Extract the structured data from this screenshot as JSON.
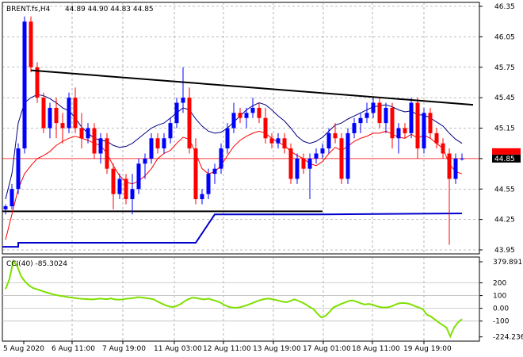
{
  "chart_data": [
    {
      "type": "candlestick",
      "header": {
        "symbol_label": "BRENT.fs,H4",
        "ohlc_label": "44.89 44.90 44.83 44.85"
      },
      "current_price_label": "44.85",
      "ylim": [
        43.95,
        46.35
      ],
      "y_ticks": [
        "46.35",
        "46.05",
        "45.75",
        "45.45",
        "45.15",
        "44.85",
        "44.55",
        "44.25",
        "43.95"
      ],
      "x_ticks": [
        "5 Aug 2020",
        "6 Aug 11:00",
        "7 Aug 19:00",
        "11 Aug 03:00",
        "12 Aug 11:00",
        "13 Aug 19:00",
        "17 Aug 01:00",
        "18 Aug 11:00",
        "19 Aug 19:00"
      ],
      "colors": {
        "bull": "#0000ff",
        "bear": "#ff0000",
        "resistance": "#000000",
        "support": "#000000",
        "fast_ma": "#ff0000",
        "slow_ma": "#000080",
        "stop_line": "#0000cc",
        "price_line": "#ff0000"
      },
      "candles": [
        [
          44.35,
          44.4,
          44.3,
          44.38
        ],
        [
          44.38,
          44.6,
          44.35,
          44.55
        ],
        [
          44.55,
          45.0,
          44.5,
          44.95
        ],
        [
          44.95,
          46.25,
          44.9,
          46.2
        ],
        [
          46.2,
          46.25,
          45.7,
          45.75
        ],
        [
          45.75,
          45.8,
          45.4,
          45.45
        ],
        [
          45.45,
          45.5,
          45.1,
          45.15
        ],
        [
          45.15,
          45.4,
          45.05,
          45.35
        ],
        [
          45.35,
          45.45,
          45.05,
          45.2
        ],
        [
          45.2,
          45.3,
          45.0,
          45.15
        ],
        [
          45.15,
          45.5,
          45.1,
          45.45
        ],
        [
          45.45,
          45.55,
          45.1,
          45.15
        ],
        [
          45.15,
          45.3,
          44.95,
          45.05
        ],
        [
          45.05,
          45.2,
          45.0,
          45.15
        ],
        [
          45.15,
          45.2,
          44.85,
          44.9
        ],
        [
          44.9,
          45.1,
          44.8,
          45.05
        ],
        [
          45.05,
          45.1,
          44.7,
          44.75
        ],
        [
          44.75,
          44.8,
          44.35,
          44.5
        ],
        [
          44.5,
          44.7,
          44.45,
          44.65
        ],
        [
          44.65,
          44.7,
          44.4,
          44.45
        ],
        [
          44.45,
          44.7,
          44.3,
          44.55
        ],
        [
          44.55,
          44.85,
          44.5,
          44.8
        ],
        [
          44.8,
          44.9,
          44.65,
          44.85
        ],
        [
          44.85,
          45.1,
          44.8,
          45.05
        ],
        [
          45.05,
          45.1,
          44.9,
          44.95
        ],
        [
          44.95,
          45.1,
          44.9,
          45.05
        ],
        [
          45.05,
          45.25,
          45.0,
          45.2
        ],
        [
          45.2,
          45.45,
          45.15,
          45.4
        ],
        [
          45.4,
          45.75,
          45.3,
          45.45
        ],
        [
          45.45,
          45.55,
          44.9,
          44.95
        ],
        [
          44.95,
          45.05,
          44.4,
          44.45
        ],
        [
          44.45,
          44.55,
          44.4,
          44.5
        ],
        [
          44.5,
          44.75,
          44.45,
          44.7
        ],
        [
          44.7,
          44.8,
          44.6,
          44.75
        ],
        [
          44.75,
          45.0,
          44.7,
          44.95
        ],
        [
          44.95,
          45.2,
          44.9,
          45.15
        ],
        [
          45.15,
          45.4,
          45.1,
          45.3
        ],
        [
          45.3,
          45.35,
          45.2,
          45.25
        ],
        [
          45.25,
          45.35,
          45.15,
          45.3
        ],
        [
          45.3,
          45.45,
          45.25,
          45.35
        ],
        [
          45.35,
          45.4,
          45.2,
          45.25
        ],
        [
          45.25,
          45.35,
          45.0,
          45.05
        ],
        [
          45.05,
          45.1,
          44.95,
          45.0
        ],
        [
          45.0,
          45.1,
          44.95,
          45.05
        ],
        [
          45.05,
          45.1,
          44.9,
          44.95
        ],
        [
          44.95,
          45.0,
          44.6,
          44.65
        ],
        [
          44.65,
          44.9,
          44.6,
          44.85
        ],
        [
          44.85,
          44.9,
          44.7,
          44.75
        ],
        [
          44.75,
          44.9,
          44.45,
          44.85
        ],
        [
          44.85,
          44.95,
          44.8,
          44.9
        ],
        [
          44.9,
          45.0,
          44.85,
          44.95
        ],
        [
          44.95,
          45.15,
          44.9,
          45.1
        ],
        [
          45.1,
          45.2,
          45.0,
          45.05
        ],
        [
          45.05,
          45.1,
          44.6,
          44.65
        ],
        [
          44.65,
          45.15,
          44.6,
          45.1
        ],
        [
          45.1,
          45.25,
          45.05,
          45.2
        ],
        [
          45.2,
          45.3,
          45.1,
          45.25
        ],
        [
          45.25,
          45.4,
          45.2,
          45.3
        ],
        [
          45.3,
          45.45,
          45.25,
          45.4
        ],
        [
          45.4,
          45.45,
          45.15,
          45.2
        ],
        [
          45.2,
          45.4,
          45.1,
          45.35
        ],
        [
          45.35,
          45.4,
          44.95,
          45.05
        ],
        [
          45.05,
          45.2,
          44.9,
          45.15
        ],
        [
          45.15,
          45.2,
          45.05,
          45.1
        ],
        [
          45.1,
          45.45,
          45.05,
          45.4
        ],
        [
          45.4,
          45.45,
          44.85,
          44.95
        ],
        [
          44.95,
          45.35,
          44.9,
          45.3
        ],
        [
          45.3,
          45.35,
          45.05,
          45.1
        ],
        [
          45.1,
          45.15,
          44.95,
          45.0
        ],
        [
          45.0,
          45.05,
          44.85,
          44.9
        ],
        [
          44.9,
          44.95,
          44.0,
          44.65
        ],
        [
          44.65,
          44.9,
          44.6,
          44.85
        ],
        [
          44.85,
          44.9,
          44.83,
          44.85
        ]
      ],
      "fast_ma": [
        44.05,
        44.3,
        44.55,
        44.7,
        44.78,
        44.85,
        44.88,
        44.92,
        44.98,
        45.02,
        45.05,
        45.07,
        45.05,
        45.03,
        45.0,
        44.98,
        44.9,
        44.78,
        44.68,
        44.62,
        44.6,
        44.63,
        44.68,
        44.75,
        44.85,
        44.9,
        44.93,
        45.0,
        45.06,
        45.04,
        44.9,
        44.75,
        44.7,
        44.72,
        44.78,
        44.88,
        44.97,
        45.03,
        45.07,
        45.1,
        45.12,
        45.1,
        45.05,
        45.01,
        44.98,
        44.92,
        44.88,
        44.85,
        44.8,
        44.78,
        44.82,
        44.9,
        44.96,
        44.93,
        44.97,
        45.02,
        45.05,
        45.07,
        45.1,
        45.1,
        45.12,
        45.09,
        45.06,
        45.05,
        45.09,
        45.05,
        45.08,
        45.05,
        45.0,
        44.95,
        44.8,
        44.72,
        44.7
      ],
      "slow_ma": [
        44.45,
        44.7,
        45.2,
        45.4,
        45.45,
        45.48,
        45.47,
        45.44,
        45.4,
        45.35,
        45.32,
        45.25,
        45.16,
        45.1,
        45.05,
        45.03,
        45.02,
        44.98,
        44.96,
        44.97,
        45.0,
        45.05,
        45.1,
        45.15,
        45.18,
        45.2,
        45.25,
        45.3,
        45.35,
        45.33,
        45.24,
        45.17,
        45.12,
        45.1,
        45.11,
        45.15,
        45.21,
        45.27,
        45.33,
        45.37,
        45.4,
        45.38,
        45.33,
        45.27,
        45.22,
        45.15,
        45.07,
        45.02,
        45.0,
        45.02,
        45.06,
        45.12,
        45.18,
        45.2,
        45.24,
        45.27,
        45.3,
        45.33,
        45.36,
        45.37,
        45.38,
        45.36,
        45.33,
        45.31,
        45.32,
        45.28,
        45.28,
        45.25,
        45.21,
        45.17,
        45.1,
        45.04,
        45.0
      ],
      "resistance_line": {
        "x": [
          5,
          90
        ],
        "y": [
          45.72,
          45.38
        ]
      },
      "support_line": {
        "x": [
          0,
          50
        ],
        "y": [
          44.33,
          44.33
        ]
      },
      "stop_line": [
        [
          0,
          43.98
        ],
        [
          2,
          43.98
        ],
        [
          2,
          44.02
        ],
        [
          30,
          44.02
        ],
        [
          33,
          44.3
        ],
        [
          50,
          44.3
        ],
        [
          72,
          44.31
        ]
      ]
    },
    {
      "type": "line",
      "label": "CCI(40) -85.3024",
      "ylim": [
        -245,
        390
      ],
      "y_ticks": [
        "379.8916",
        "200",
        "100",
        "0.00",
        "-100",
        "-224.236"
      ],
      "levels": [
        200,
        100,
        0,
        -100
      ],
      "colors": {
        "line": "#7ee000",
        "levels": "#c0c0c0"
      },
      "values": [
        150,
        230,
        372,
        330,
        250,
        210,
        180,
        160,
        150,
        140,
        130,
        120,
        112,
        104,
        98,
        94,
        88,
        84,
        80,
        76,
        74,
        72,
        70,
        72,
        76,
        74,
        72,
        78,
        70,
        68,
        70,
        76,
        78,
        82,
        88,
        84,
        80,
        76,
        70,
        52,
        38,
        24,
        14,
        10,
        20,
        36,
        58,
        74,
        84,
        80,
        74,
        70,
        76,
        66,
        58,
        46,
        28,
        14,
        6,
        4,
        8,
        16,
        26,
        38,
        50,
        62,
        70,
        76,
        74,
        68,
        60,
        52,
        48,
        58,
        70,
        60,
        46,
        30,
        10,
        -8,
        -44,
        -72,
        -60,
        -30,
        6,
        20,
        34,
        46,
        58,
        62,
        52,
        40,
        30,
        34,
        30,
        18,
        10,
        6,
        8,
        16,
        30,
        40,
        42,
        38,
        30,
        16,
        6,
        -8,
        -50,
        -64,
        -86,
        -110,
        -130,
        -150,
        -220,
        -150,
        -110,
        -85
      ]
    }
  ]
}
